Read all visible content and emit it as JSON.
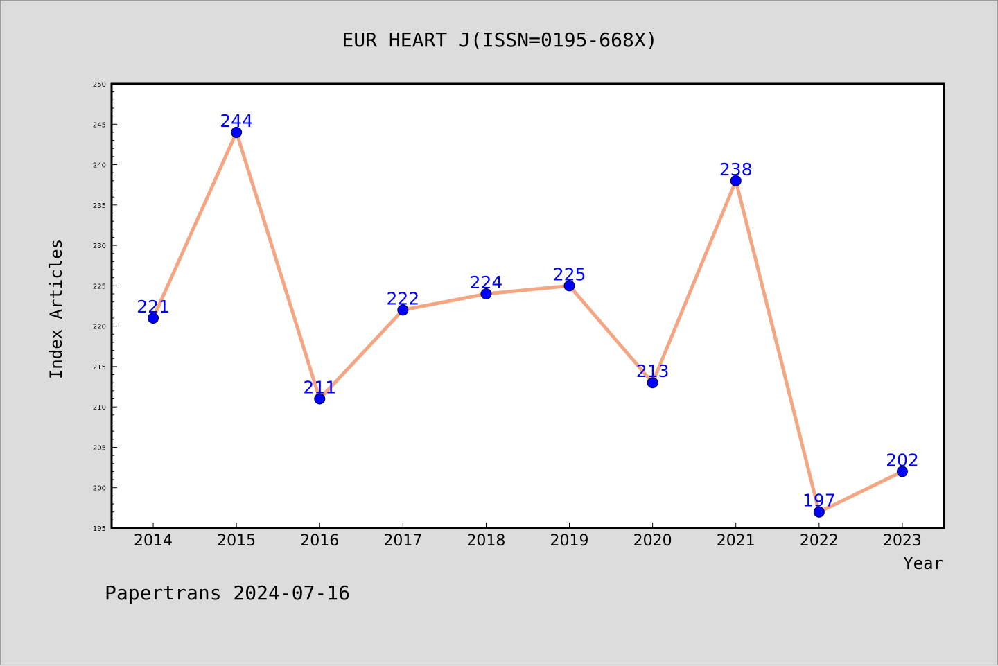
{
  "chart_data": {
    "type": "line",
    "title": "EUR HEART J(ISSN=0195-668X)",
    "xlabel": "Year",
    "ylabel": "Index Articles",
    "categories": [
      "2014",
      "2015",
      "2016",
      "2017",
      "2018",
      "2019",
      "2020",
      "2021",
      "2022",
      "2023"
    ],
    "series": [
      {
        "values": [
          221,
          244,
          211,
          222,
          224,
          225,
          213,
          238,
          197,
          202
        ]
      }
    ],
    "ylim": [
      195,
      250
    ],
    "ytick_step": 5,
    "yminor_step": 1,
    "grid": false,
    "data_labels": true,
    "colors": {
      "line": "#f4a582",
      "marker": "#0000ff",
      "data_label": "#0000ff",
      "background": "#dcdcdc",
      "plot_background": "#ffffff"
    }
  },
  "footer": "Papertrans 2024-07-16"
}
